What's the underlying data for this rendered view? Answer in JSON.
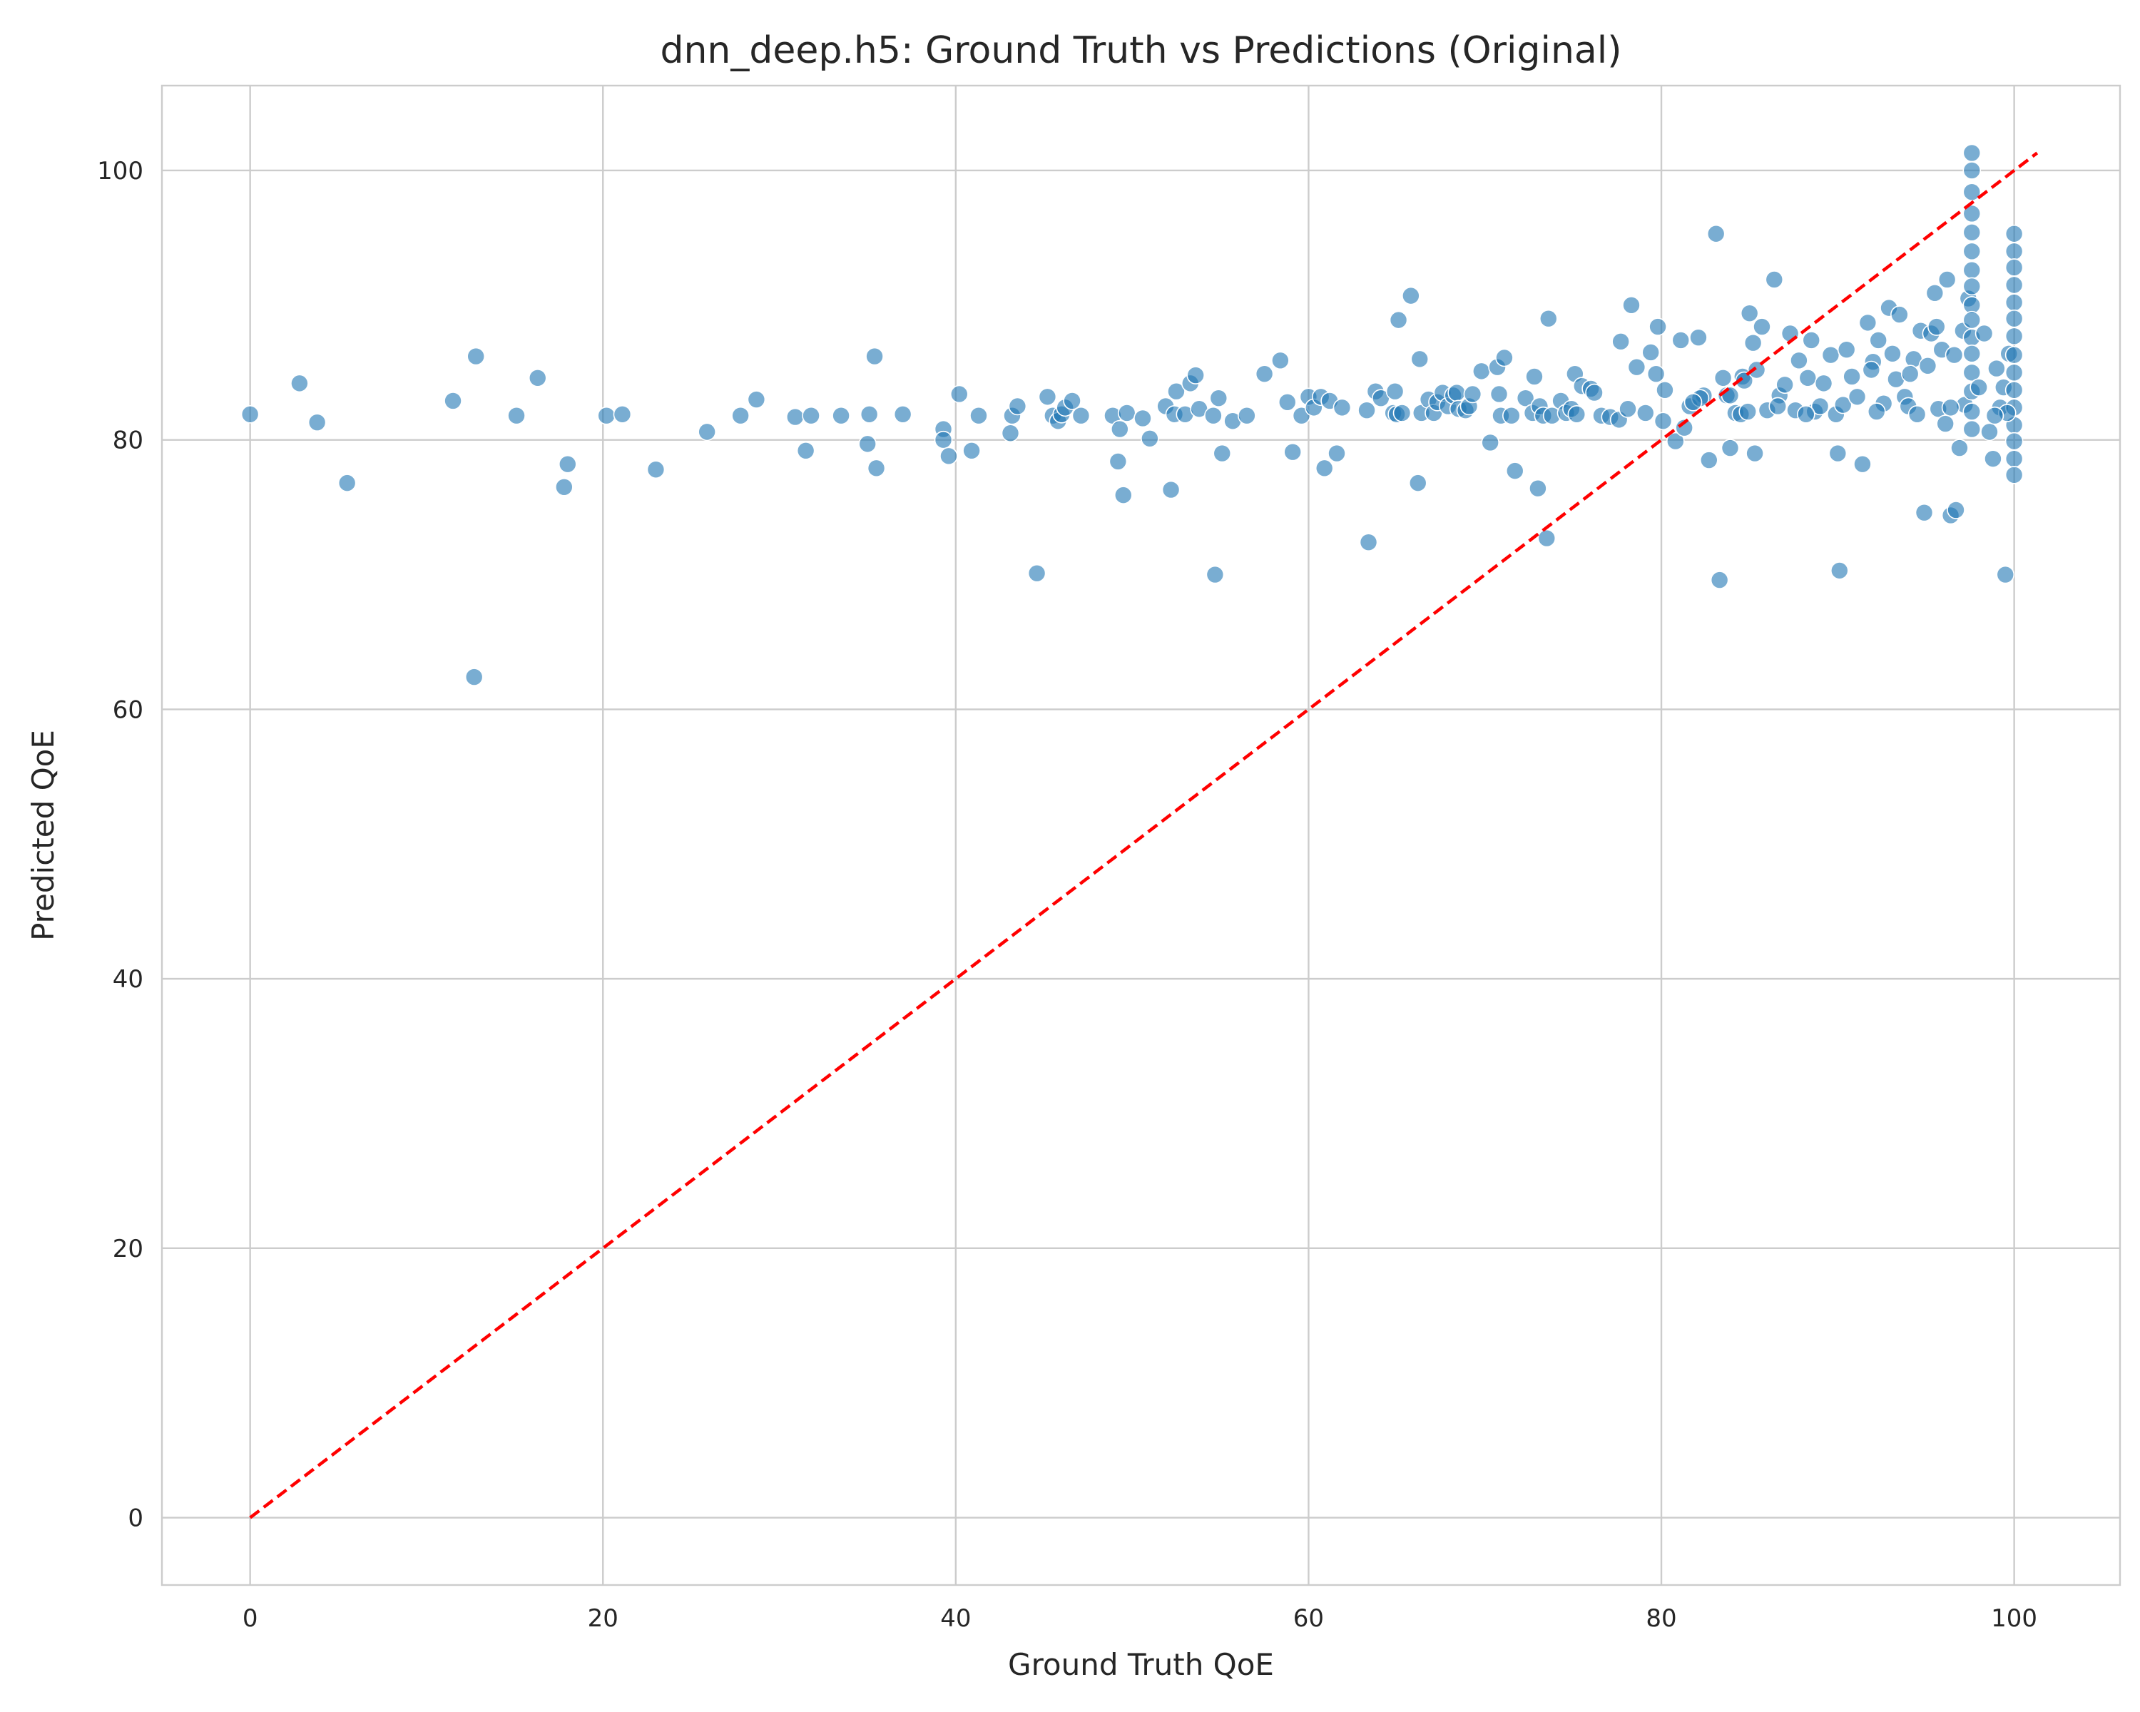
{
  "chart_data": {
    "type": "scatter",
    "title": "dnn_deep.h5: Ground Truth vs Predictions (Original)",
    "xlabel": "Ground Truth QoE",
    "ylabel": "Predicted QoE",
    "xlim": [
      -5,
      106
    ],
    "ylim": [
      -5,
      106.3
    ],
    "xticks": [
      0,
      20,
      40,
      60,
      80,
      100
    ],
    "yticks": [
      0,
      20,
      40,
      60,
      80,
      100
    ],
    "grid": true,
    "marker_color": "#1f77b4",
    "reference_line": {
      "style": "dashed",
      "color": "#ff0000",
      "from": [
        0,
        0
      ],
      "to": [
        101.3,
        101.3
      ]
    },
    "points": [
      [
        0,
        81.9
      ],
      [
        2.8,
        84.2
      ],
      [
        3.8,
        81.3
      ],
      [
        5.5,
        76.8
      ],
      [
        11.5,
        82.9
      ],
      [
        12.7,
        62.4
      ],
      [
        12.8,
        86.2
      ],
      [
        15.1,
        81.8
      ],
      [
        16.3,
        84.6
      ],
      [
        17.8,
        76.5
      ],
      [
        18,
        78.2
      ],
      [
        20.2,
        81.8
      ],
      [
        21.1,
        81.9
      ],
      [
        23,
        77.8
      ],
      [
        25.9,
        80.6
      ],
      [
        27.8,
        81.8
      ],
      [
        28.7,
        83
      ],
      [
        30.9,
        81.7
      ],
      [
        31.5,
        79.2
      ],
      [
        31.8,
        81.8
      ],
      [
        33.5,
        81.8
      ],
      [
        35,
        79.7
      ],
      [
        35.1,
        81.9
      ],
      [
        35.4,
        86.2
      ],
      [
        35.5,
        77.9
      ],
      [
        37,
        81.9
      ],
      [
        39.3,
        80.8
      ],
      [
        39.3,
        80
      ],
      [
        39.6,
        78.8
      ],
      [
        40.2,
        83.4
      ],
      [
        40.9,
        79.2
      ],
      [
        41.3,
        81.8
      ],
      [
        43.1,
        80.5
      ],
      [
        43.2,
        81.8
      ],
      [
        43.5,
        82.5
      ],
      [
        44.6,
        70.1
      ],
      [
        45.2,
        83.2
      ],
      [
        45.5,
        81.8
      ],
      [
        45.8,
        81.4
      ],
      [
        46,
        81.9
      ],
      [
        46.2,
        82.4
      ],
      [
        46.6,
        82.9
      ],
      [
        47.1,
        81.8
      ],
      [
        48.9,
        81.8
      ],
      [
        49.2,
        78.4
      ],
      [
        49.3,
        80.8
      ],
      [
        49.5,
        75.9
      ],
      [
        49.7,
        82
      ],
      [
        50.6,
        81.6
      ],
      [
        51,
        80.1
      ],
      [
        51.9,
        82.5
      ],
      [
        52.2,
        76.3
      ],
      [
        52.4,
        81.9
      ],
      [
        52.5,
        83.6
      ],
      [
        53,
        81.9
      ],
      [
        53.3,
        84.2
      ],
      [
        53.6,
        84.8
      ],
      [
        53.8,
        82.3
      ],
      [
        54.6,
        81.8
      ],
      [
        54.7,
        70
      ],
      [
        54.9,
        83.1
      ],
      [
        55.1,
        79
      ],
      [
        55.7,
        81.4
      ],
      [
        56.5,
        81.8
      ],
      [
        57.5,
        84.9
      ],
      [
        58.4,
        85.9
      ],
      [
        58.8,
        82.8
      ],
      [
        59.1,
        79.1
      ],
      [
        59.6,
        81.8
      ],
      [
        60,
        83.2
      ],
      [
        60.3,
        82.4
      ],
      [
        60.7,
        83.2
      ],
      [
        60.9,
        77.9
      ],
      [
        61.2,
        82.9
      ],
      [
        61.6,
        79
      ],
      [
        61.9,
        82.4
      ],
      [
        63.3,
        82.2
      ],
      [
        63.4,
        72.4
      ],
      [
        63.8,
        83.6
      ],
      [
        64.1,
        83.1
      ],
      [
        64.8,
        82
      ],
      [
        64.9,
        83.6
      ],
      [
        65,
        81.9
      ],
      [
        65.1,
        88.9
      ],
      [
        65.3,
        82
      ],
      [
        65.8,
        90.7
      ],
      [
        66.2,
        76.8
      ],
      [
        66.3,
        86
      ],
      [
        66.4,
        82
      ],
      [
        66.8,
        83
      ],
      [
        67.1,
        82
      ],
      [
        67.3,
        82.8
      ],
      [
        67.6,
        83.5
      ],
      [
        67.9,
        82.5
      ],
      [
        68.2,
        83.3
      ],
      [
        68.4,
        83.5
      ],
      [
        68.5,
        82.3
      ],
      [
        68.9,
        82.2
      ],
      [
        69.1,
        82.5
      ],
      [
        69.3,
        83.4
      ],
      [
        69.8,
        85.1
      ],
      [
        70.3,
        79.8
      ],
      [
        70.7,
        85.4
      ],
      [
        70.8,
        83.4
      ],
      [
        70.9,
        81.8
      ],
      [
        71.1,
        86.1
      ],
      [
        71.5,
        81.8
      ],
      [
        71.7,
        77.7
      ],
      [
        72.3,
        83.1
      ],
      [
        72.7,
        82
      ],
      [
        72.8,
        84.7
      ],
      [
        73,
        76.4
      ],
      [
        73.1,
        82.5
      ],
      [
        73.3,
        81.8
      ],
      [
        73.5,
        72.7
      ],
      [
        73.6,
        89
      ],
      [
        73.8,
        81.8
      ],
      [
        74.3,
        82.9
      ],
      [
        74.6,
        82
      ],
      [
        74.9,
        82.3
      ],
      [
        75.1,
        84.9
      ],
      [
        75.2,
        81.9
      ],
      [
        75.5,
        84
      ],
      [
        76,
        83.8
      ],
      [
        76.2,
        83.5
      ],
      [
        76.6,
        81.8
      ],
      [
        77.1,
        81.7
      ],
      [
        77.6,
        81.5
      ],
      [
        77.7,
        87.3
      ],
      [
        78.1,
        82.3
      ],
      [
        78.3,
        90
      ],
      [
        78.6,
        85.4
      ],
      [
        79.1,
        82
      ],
      [
        79.4,
        86.5
      ],
      [
        79.7,
        84.9
      ],
      [
        79.8,
        88.4
      ],
      [
        80.1,
        81.4
      ],
      [
        80.2,
        83.7
      ],
      [
        80.8,
        79.9
      ],
      [
        81.1,
        87.4
      ],
      [
        81.3,
        80.9
      ],
      [
        81.6,
        82.5
      ],
      [
        82.1,
        87.6
      ],
      [
        82.4,
        83.3
      ],
      [
        82.7,
        78.5
      ],
      [
        83.1,
        95.3
      ],
      [
        83.3,
        69.6
      ],
      [
        83.5,
        84.6
      ],
      [
        83.7,
        83.3
      ],
      [
        83.9,
        79.4
      ],
      [
        84.2,
        82
      ],
      [
        84.6,
        84.7
      ],
      [
        85,
        89.4
      ],
      [
        85.2,
        87.2
      ],
      [
        85.3,
        79
      ],
      [
        85.7,
        88.4
      ],
      [
        86,
        82.2
      ],
      [
        86.4,
        91.9
      ],
      [
        86.7,
        83.3
      ],
      [
        87,
        84.1
      ],
      [
        87.3,
        87.9
      ],
      [
        87.6,
        82.2
      ],
      [
        87.8,
        85.9
      ],
      [
        88.3,
        84.6
      ],
      [
        88.5,
        87.4
      ],
      [
        88.7,
        82.1
      ],
      [
        89,
        82.5
      ],
      [
        89.2,
        84.2
      ],
      [
        89.6,
        86.3
      ],
      [
        89.9,
        81.9
      ],
      [
        90,
        79
      ],
      [
        90.1,
        70.3
      ],
      [
        90.3,
        82.6
      ],
      [
        90.5,
        86.7
      ],
      [
        90.8,
        84.7
      ],
      [
        91.1,
        83.2
      ],
      [
        91.4,
        78.2
      ],
      [
        91.7,
        88.7
      ],
      [
        92,
        85.8
      ],
      [
        92.3,
        87.4
      ],
      [
        92.6,
        82.7
      ],
      [
        92.9,
        89.8
      ],
      [
        93.1,
        86.4
      ],
      [
        93.3,
        84.5
      ],
      [
        93.5,
        89.3
      ],
      [
        93.8,
        83.2
      ],
      [
        94,
        82.5
      ],
      [
        94.3,
        86
      ],
      [
        94.5,
        81.9
      ],
      [
        94.7,
        88.1
      ],
      [
        94.9,
        74.6
      ],
      [
        95.1,
        85.5
      ],
      [
        95.3,
        87.9
      ],
      [
        95.5,
        90.9
      ],
      [
        95.7,
        82.3
      ],
      [
        95.9,
        86.7
      ],
      [
        96.1,
        81.2
      ],
      [
        96.2,
        91.9
      ],
      [
        96.4,
        74.4
      ],
      [
        96.6,
        86.3
      ],
      [
        96.7,
        74.8
      ],
      [
        96.9,
        79.4
      ],
      [
        97.1,
        88.1
      ],
      [
        97.2,
        82.6
      ],
      [
        97.4,
        90.5
      ],
      [
        97.6,
        101.3
      ],
      [
        97.6,
        100
      ],
      [
        97.6,
        98.4
      ],
      [
        97.6,
        96.8
      ],
      [
        97.6,
        95.4
      ],
      [
        97.6,
        94
      ],
      [
        97.6,
        92.6
      ],
      [
        97.6,
        91.4
      ],
      [
        97.6,
        90
      ],
      [
        97.6,
        88.9
      ],
      [
        97.6,
        87.6
      ],
      [
        97.6,
        86.4
      ],
      [
        97.6,
        85
      ],
      [
        97.6,
        83.6
      ],
      [
        97.6,
        82.1
      ],
      [
        97.6,
        80.8
      ],
      [
        98,
        83.9
      ],
      [
        98.3,
        87.9
      ],
      [
        98.6,
        80.6
      ],
      [
        98.8,
        78.6
      ],
      [
        99,
        85.3
      ],
      [
        99.2,
        82.4
      ],
      [
        99.4,
        83.9
      ],
      [
        99.5,
        70
      ],
      [
        99.7,
        86.4
      ],
      [
        100,
        95.3
      ],
      [
        100,
        94
      ],
      [
        100,
        92.8
      ],
      [
        100,
        91.5
      ],
      [
        100,
        90.2
      ],
      [
        100,
        89
      ],
      [
        100,
        87.7
      ],
      [
        100,
        86.3
      ],
      [
        100,
        85
      ],
      [
        100,
        83.7
      ],
      [
        100,
        82.4
      ],
      [
        100,
        81.1
      ],
      [
        100,
        79.9
      ],
      [
        100,
        78.6
      ],
      [
        100,
        77.4
      ],
      [
        99.6,
        82
      ],
      [
        98.9,
        81.8
      ],
      [
        96.4,
        82.4
      ],
      [
        95.6,
        88.4
      ],
      [
        94.1,
        84.9
      ],
      [
        92.2,
        82.1
      ],
      [
        91.9,
        85.2
      ],
      [
        88.2,
        81.9
      ],
      [
        86.6,
        82.5
      ],
      [
        84.5,
        81.9
      ],
      [
        84.9,
        82.1
      ],
      [
        83.9,
        83.3
      ],
      [
        84.7,
        84.4
      ],
      [
        85.4,
        85.2
      ],
      [
        82.2,
        83.1
      ],
      [
        81.8,
        82.8
      ]
    ]
  }
}
